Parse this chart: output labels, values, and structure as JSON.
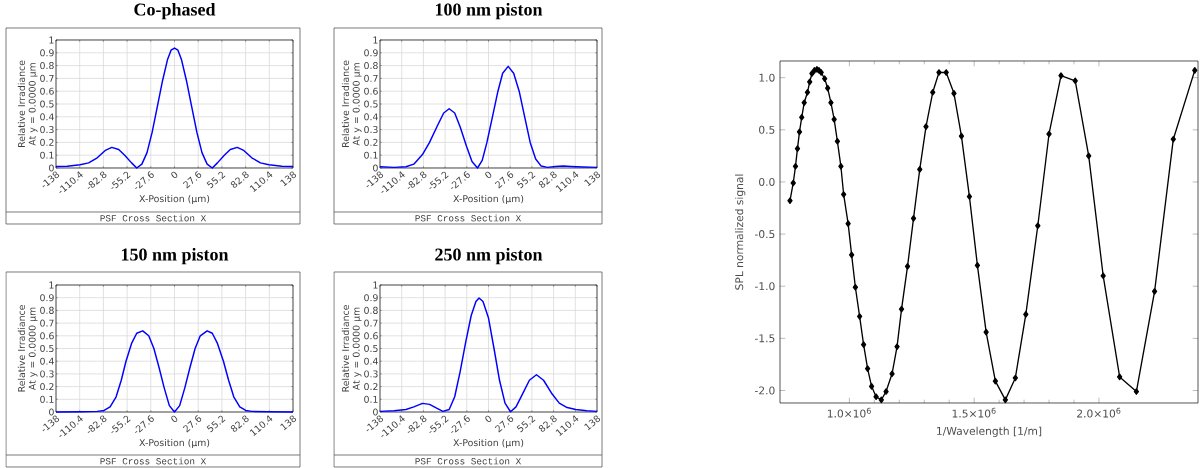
{
  "chart_data": [
    {
      "type": "line",
      "title": "Co-phased",
      "xlabel": "X-Position (µm)",
      "ylabel": "Relative Irradiance At y = 0.0000 µm",
      "annotations": [
        "PSF Cross Section X"
      ],
      "grid": true,
      "x": [
        -138,
        -125,
        -110,
        -100,
        -90,
        -80,
        -73,
        -65,
        -58,
        -50,
        -44,
        -38,
        -32,
        -26,
        -20,
        -14,
        -8,
        -4,
        0,
        4,
        8,
        14,
        20,
        26,
        32,
        38,
        44,
        50,
        58,
        65,
        73,
        80,
        90,
        100,
        110,
        125,
        138
      ],
      "series": [
        {
          "color": "#0000ff",
          "values": [
            0.012,
            0.014,
            0.025,
            0.04,
            0.08,
            0.14,
            0.161,
            0.145,
            0.1,
            0.04,
            0.0,
            0.03,
            0.12,
            0.28,
            0.48,
            0.68,
            0.85,
            0.92,
            0.937,
            0.92,
            0.85,
            0.68,
            0.48,
            0.28,
            0.12,
            0.03,
            0.0,
            0.04,
            0.1,
            0.145,
            0.161,
            0.14,
            0.08,
            0.04,
            0.025,
            0.014,
            0.012
          ]
        }
      ],
      "xlim": [
        -138,
        138
      ],
      "ylim": [
        0,
        1
      ],
      "xticks": [
        -138,
        -110.4,
        -82.8,
        -55.2,
        -27.6,
        0,
        27.6,
        55.2,
        82.8,
        110.4,
        138
      ],
      "yticks": [
        0,
        0.1,
        0.2,
        0.3,
        0.4,
        0.5,
        0.6,
        0.7,
        0.8,
        0.9,
        1
      ]
    },
    {
      "type": "line",
      "title": "100 nm piston",
      "xlabel": "X-Position (µm)",
      "ylabel": "Relative Irradiance At y = 0.0000 µm",
      "annotations": [
        "PSF Cross Section X"
      ],
      "grid": true,
      "x": [
        -138,
        -120,
        -105,
        -95,
        -84,
        -75,
        -65,
        -57,
        -50,
        -43,
        -36,
        -28,
        -21,
        -14,
        -8,
        -2,
        5,
        12,
        18,
        25,
        32,
        39,
        46,
        53,
        60,
        67,
        75,
        85,
        95,
        105,
        120,
        138
      ],
      "series": [
        {
          "color": "#0000ff",
          "values": [
            0.01,
            0.005,
            0.01,
            0.03,
            0.105,
            0.2,
            0.33,
            0.43,
            0.463,
            0.43,
            0.32,
            0.17,
            0.05,
            0.0,
            0.06,
            0.2,
            0.4,
            0.6,
            0.74,
            0.794,
            0.74,
            0.6,
            0.4,
            0.2,
            0.07,
            0.015,
            0.005,
            0.012,
            0.015,
            0.012,
            0.008,
            0.005
          ]
        }
      ],
      "xlim": [
        -138,
        138
      ],
      "ylim": [
        0,
        1
      ],
      "xticks": [
        -138,
        -110.4,
        -82.8,
        -55.2,
        -27.6,
        0,
        27.6,
        55.2,
        82.8,
        110.4,
        138
      ],
      "yticks": [
        0,
        0.1,
        0.2,
        0.3,
        0.4,
        0.5,
        0.6,
        0.7,
        0.8,
        0.9,
        1
      ]
    },
    {
      "type": "line",
      "title": "150 nm piston",
      "xlabel": "X-Position (µm)",
      "ylabel": "Relative Irradiance At y = 0.0000 µm",
      "annotations": [
        "PSF Cross Section X"
      ],
      "grid": true,
      "x": [
        -138,
        -110,
        -90,
        -82,
        -75,
        -68,
        -62,
        -56.5,
        -50,
        -44,
        -37,
        -30,
        -24,
        -18,
        -12,
        -6,
        0,
        6,
        12,
        18,
        24,
        30,
        38,
        44,
        50,
        57,
        63,
        69,
        76,
        83,
        90,
        110,
        138
      ],
      "series": [
        {
          "color": "#0000ff",
          "values": [
            0.0,
            0.002,
            0.005,
            0.012,
            0.04,
            0.12,
            0.25,
            0.4,
            0.54,
            0.62,
            0.639,
            0.6,
            0.5,
            0.35,
            0.19,
            0.05,
            0.0,
            0.05,
            0.19,
            0.35,
            0.5,
            0.6,
            0.639,
            0.62,
            0.54,
            0.4,
            0.25,
            0.12,
            0.04,
            0.012,
            0.005,
            0.002,
            0.0
          ]
        }
      ],
      "xlim": [
        -138,
        138
      ],
      "ylim": [
        0,
        1
      ],
      "xticks": [
        -138,
        -110.4,
        -82.8,
        -55.2,
        -27.6,
        0,
        27.6,
        55.2,
        82.8,
        110.4,
        138
      ],
      "yticks": [
        0,
        0.1,
        0.2,
        0.3,
        0.4,
        0.5,
        0.6,
        0.7,
        0.8,
        0.9,
        1
      ]
    },
    {
      "type": "line",
      "title": "250 nm piston",
      "xlabel": "X-Position (µm)",
      "ylabel": "Relative Irradiance At y = 0.0000 µm",
      "annotations": [
        "PSF Cross Section X"
      ],
      "grid": true,
      "x": [
        -138,
        -120,
        -105,
        -95,
        -84,
        -75,
        -66,
        -58,
        -50,
        -43,
        -36,
        -29,
        -22,
        -16,
        -12,
        -7,
        0,
        7,
        14,
        21,
        28,
        35,
        44,
        52,
        61,
        70,
        80,
        90,
        100,
        111,
        125,
        138
      ],
      "series": [
        {
          "color": "#0000ff",
          "values": [
            0.005,
            0.01,
            0.02,
            0.04,
            0.068,
            0.06,
            0.03,
            0.005,
            0.02,
            0.12,
            0.32,
            0.55,
            0.76,
            0.87,
            0.898,
            0.87,
            0.74,
            0.5,
            0.25,
            0.07,
            0.002,
            0.04,
            0.15,
            0.25,
            0.293,
            0.25,
            0.15,
            0.07,
            0.035,
            0.02,
            0.01,
            0.005
          ]
        }
      ],
      "xlim": [
        -138,
        138
      ],
      "ylim": [
        0,
        1
      ],
      "xticks": [
        -138,
        -110.4,
        -82.8,
        -55.2,
        -27.6,
        0,
        27.6,
        55.2,
        82.8,
        110.4,
        138
      ],
      "yticks": [
        0,
        0.1,
        0.2,
        0.3,
        0.4,
        0.5,
        0.6,
        0.7,
        0.8,
        0.9,
        1
      ]
    },
    {
      "type": "line",
      "xlabel": "1/Wavelength [1/m]",
      "ylabel": "SPL normalized signal",
      "marker": "diamond",
      "x": [
        762000,
        775000,
        784000,
        792000,
        800000,
        809000,
        819000,
        832000,
        841000,
        850000,
        860000,
        870000,
        878000,
        887000,
        901000,
        913000,
        926000,
        939000,
        952000,
        966000,
        977000,
        995000,
        1009000,
        1024000,
        1041000,
        1057000,
        1073000,
        1089000,
        1107000,
        1128000,
        1147000,
        1171000,
        1191000,
        1209000,
        1233000,
        1257000,
        1282000,
        1307000,
        1334000,
        1359000,
        1388000,
        1419000,
        1449000,
        1481000,
        1513000,
        1548000,
        1585000,
        1625000,
        1665000,
        1707000,
        1755000,
        1800000,
        1848000,
        1905000,
        1959000,
        2017000,
        2083000,
        2150000,
        2223000,
        2298000,
        2384000
      ],
      "series": [
        {
          "color": "#000000",
          "values": [
            -0.18,
            -0.01,
            0.15,
            0.32,
            0.48,
            0.62,
            0.76,
            0.86,
            0.96,
            1.04,
            1.07,
            1.08,
            1.07,
            1.05,
            0.99,
            0.9,
            0.76,
            0.6,
            0.39,
            0.15,
            -0.12,
            -0.4,
            -0.7,
            -1.01,
            -1.29,
            -1.56,
            -1.79,
            -1.96,
            -2.06,
            -2.09,
            -2.01,
            -1.84,
            -1.58,
            -1.22,
            -0.81,
            -0.35,
            0.12,
            0.53,
            0.86,
            1.05,
            1.05,
            0.85,
            0.44,
            -0.14,
            -0.8,
            -1.44,
            -1.91,
            -2.09,
            -1.88,
            -1.27,
            -0.42,
            0.46,
            1.02,
            0.97,
            0.25,
            -0.9,
            -1.87,
            -2.01,
            -1.05,
            0.41,
            1.07
          ]
        }
      ],
      "xlim": [
        722000,
        2397000
      ],
      "ylim": [
        -2.12,
        1.16
      ],
      "xticks": [
        {
          "value": 1000000,
          "label": "1.0×10$^{6}$"
        },
        {
          "value": 1500000,
          "label": "1.5×10$^{6}$"
        },
        {
          "value": 2000000,
          "label": "2.0×10$^{6}$"
        }
      ],
      "yticks": [
        {
          "value": -2,
          "label": "-2.0"
        },
        {
          "value": -1.5,
          "label": "-1.5"
        },
        {
          "value": -1,
          "label": "-1.0"
        },
        {
          "value": -0.5,
          "label": "-0.5"
        },
        {
          "value": 0,
          "label": "0.0"
        },
        {
          "value": 0.5,
          "label": "0.5"
        },
        {
          "value": 1,
          "label": "1.0"
        }
      ]
    }
  ]
}
